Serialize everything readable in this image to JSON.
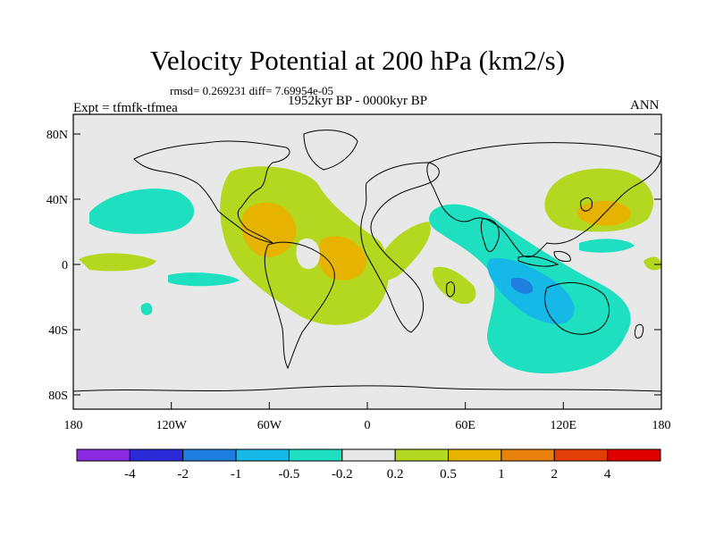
{
  "title": "Velocity Potential at 200 hPa (km2/s)",
  "stats_line": "rmsd= 0.269231 diff= 7.69954e-05",
  "left_label": "Expt = tfmfk-tfmea",
  "center_label": "1952kyr BP - 0000kyr BP",
  "right_label": "ANN",
  "lat_ticks": [
    "80N",
    "40N",
    "0",
    "40S",
    "80S"
  ],
  "lon_ticks": [
    "180",
    "120W",
    "60W",
    "0",
    "60E",
    "120E",
    "180"
  ],
  "colorbar": {
    "colors": [
      "#8a2be2",
      "#2a2ad8",
      "#1f7fe0",
      "#16b8e8",
      "#1ee0c0",
      "#e8e8e8",
      "#b4d820",
      "#e6b400",
      "#e8820c",
      "#e04008",
      "#e00000"
    ],
    "labels": [
      "-4",
      "-2",
      "-1",
      "-0.5",
      "-0.2",
      "0.2",
      "0.5",
      "1",
      "2",
      "4"
    ]
  },
  "colors": {
    "background": "#e8e8e8",
    "level_neg_02": "#1ee0c0",
    "level_neg_05": "#16b8e8",
    "level_neg_1": "#1f7fe0",
    "level_pos_02": "#b4d820",
    "level_pos_05": "#e6b400",
    "level_pos_1": "#e8820c"
  }
}
